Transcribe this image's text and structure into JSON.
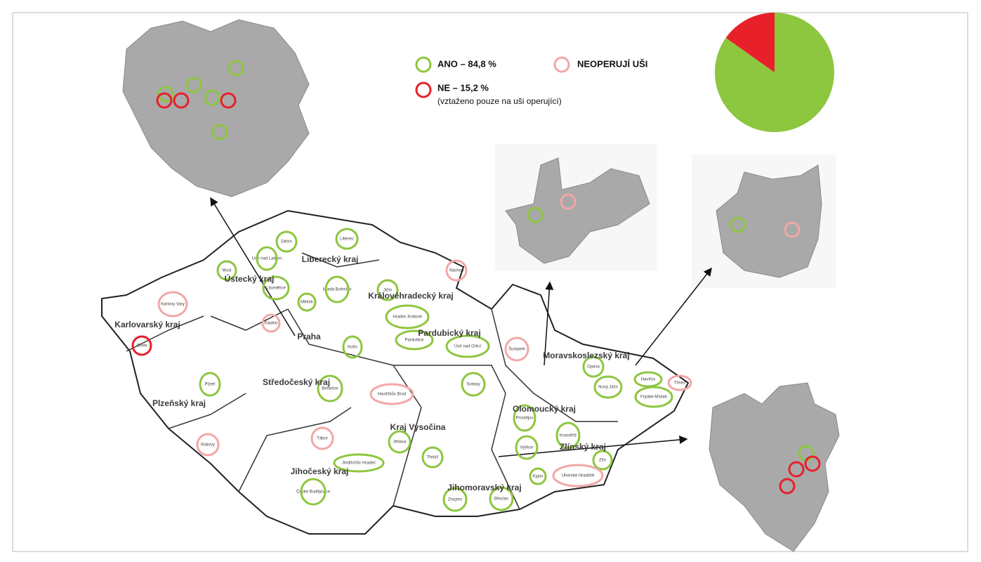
{
  "legend": {
    "yes": "ANO – 84,8 %",
    "no": "NE – 15,2 %",
    "note": "(vztaženo pouze na uši operující)",
    "not_operating": "NEOPERUJÍ UŠI"
  },
  "chart_data": {
    "type": "pie",
    "values": [
      84.8,
      15.2
    ],
    "colors": [
      "#8dc63f",
      "#e8202a"
    ]
  },
  "regions": [
    "Liberecký kraj",
    "Ústecký kraj",
    "Karlovarský kraj",
    "Královéhradecký kraj",
    "Praha",
    "Středočeský kraj",
    "Plzeňský kraj",
    "Pardubický kraj",
    "Kraj Vysočina",
    "Jihočeský kraj",
    "Jihomoravský kraj",
    "Olomoucký kraj",
    "Zlínský kraj",
    "Moravskoslezský kraj"
  ],
  "cities": [
    "Děčín",
    "Liberec",
    "Ústí nad Labem",
    "Most",
    "Litoměřice",
    "Mělník",
    "Mladá Boleslav",
    "Jičín",
    "Náchod",
    "Karlovy Vary",
    "Kladno",
    "Cheb",
    "Hradec Králové",
    "Pardubice",
    "Kolín",
    "Ústí nad Orlicí",
    "Šumperk",
    "Opava",
    "Havířov",
    "Třinec",
    "Nový Jičín",
    "Frýdek-Místek",
    "Svitavy",
    "Benešov",
    "Havlíčkův Brod",
    "Plzeň",
    "Prostějov",
    "Kroměříž",
    "Vyškov",
    "Jihlava",
    "Tábor",
    "Klatovy",
    "Třebíč",
    "Jindřichův Hradec",
    "Zlín",
    "Kyjov",
    "Uherské Hradiště",
    "České Budějovice",
    "Znojmo",
    "Břeclav"
  ]
}
